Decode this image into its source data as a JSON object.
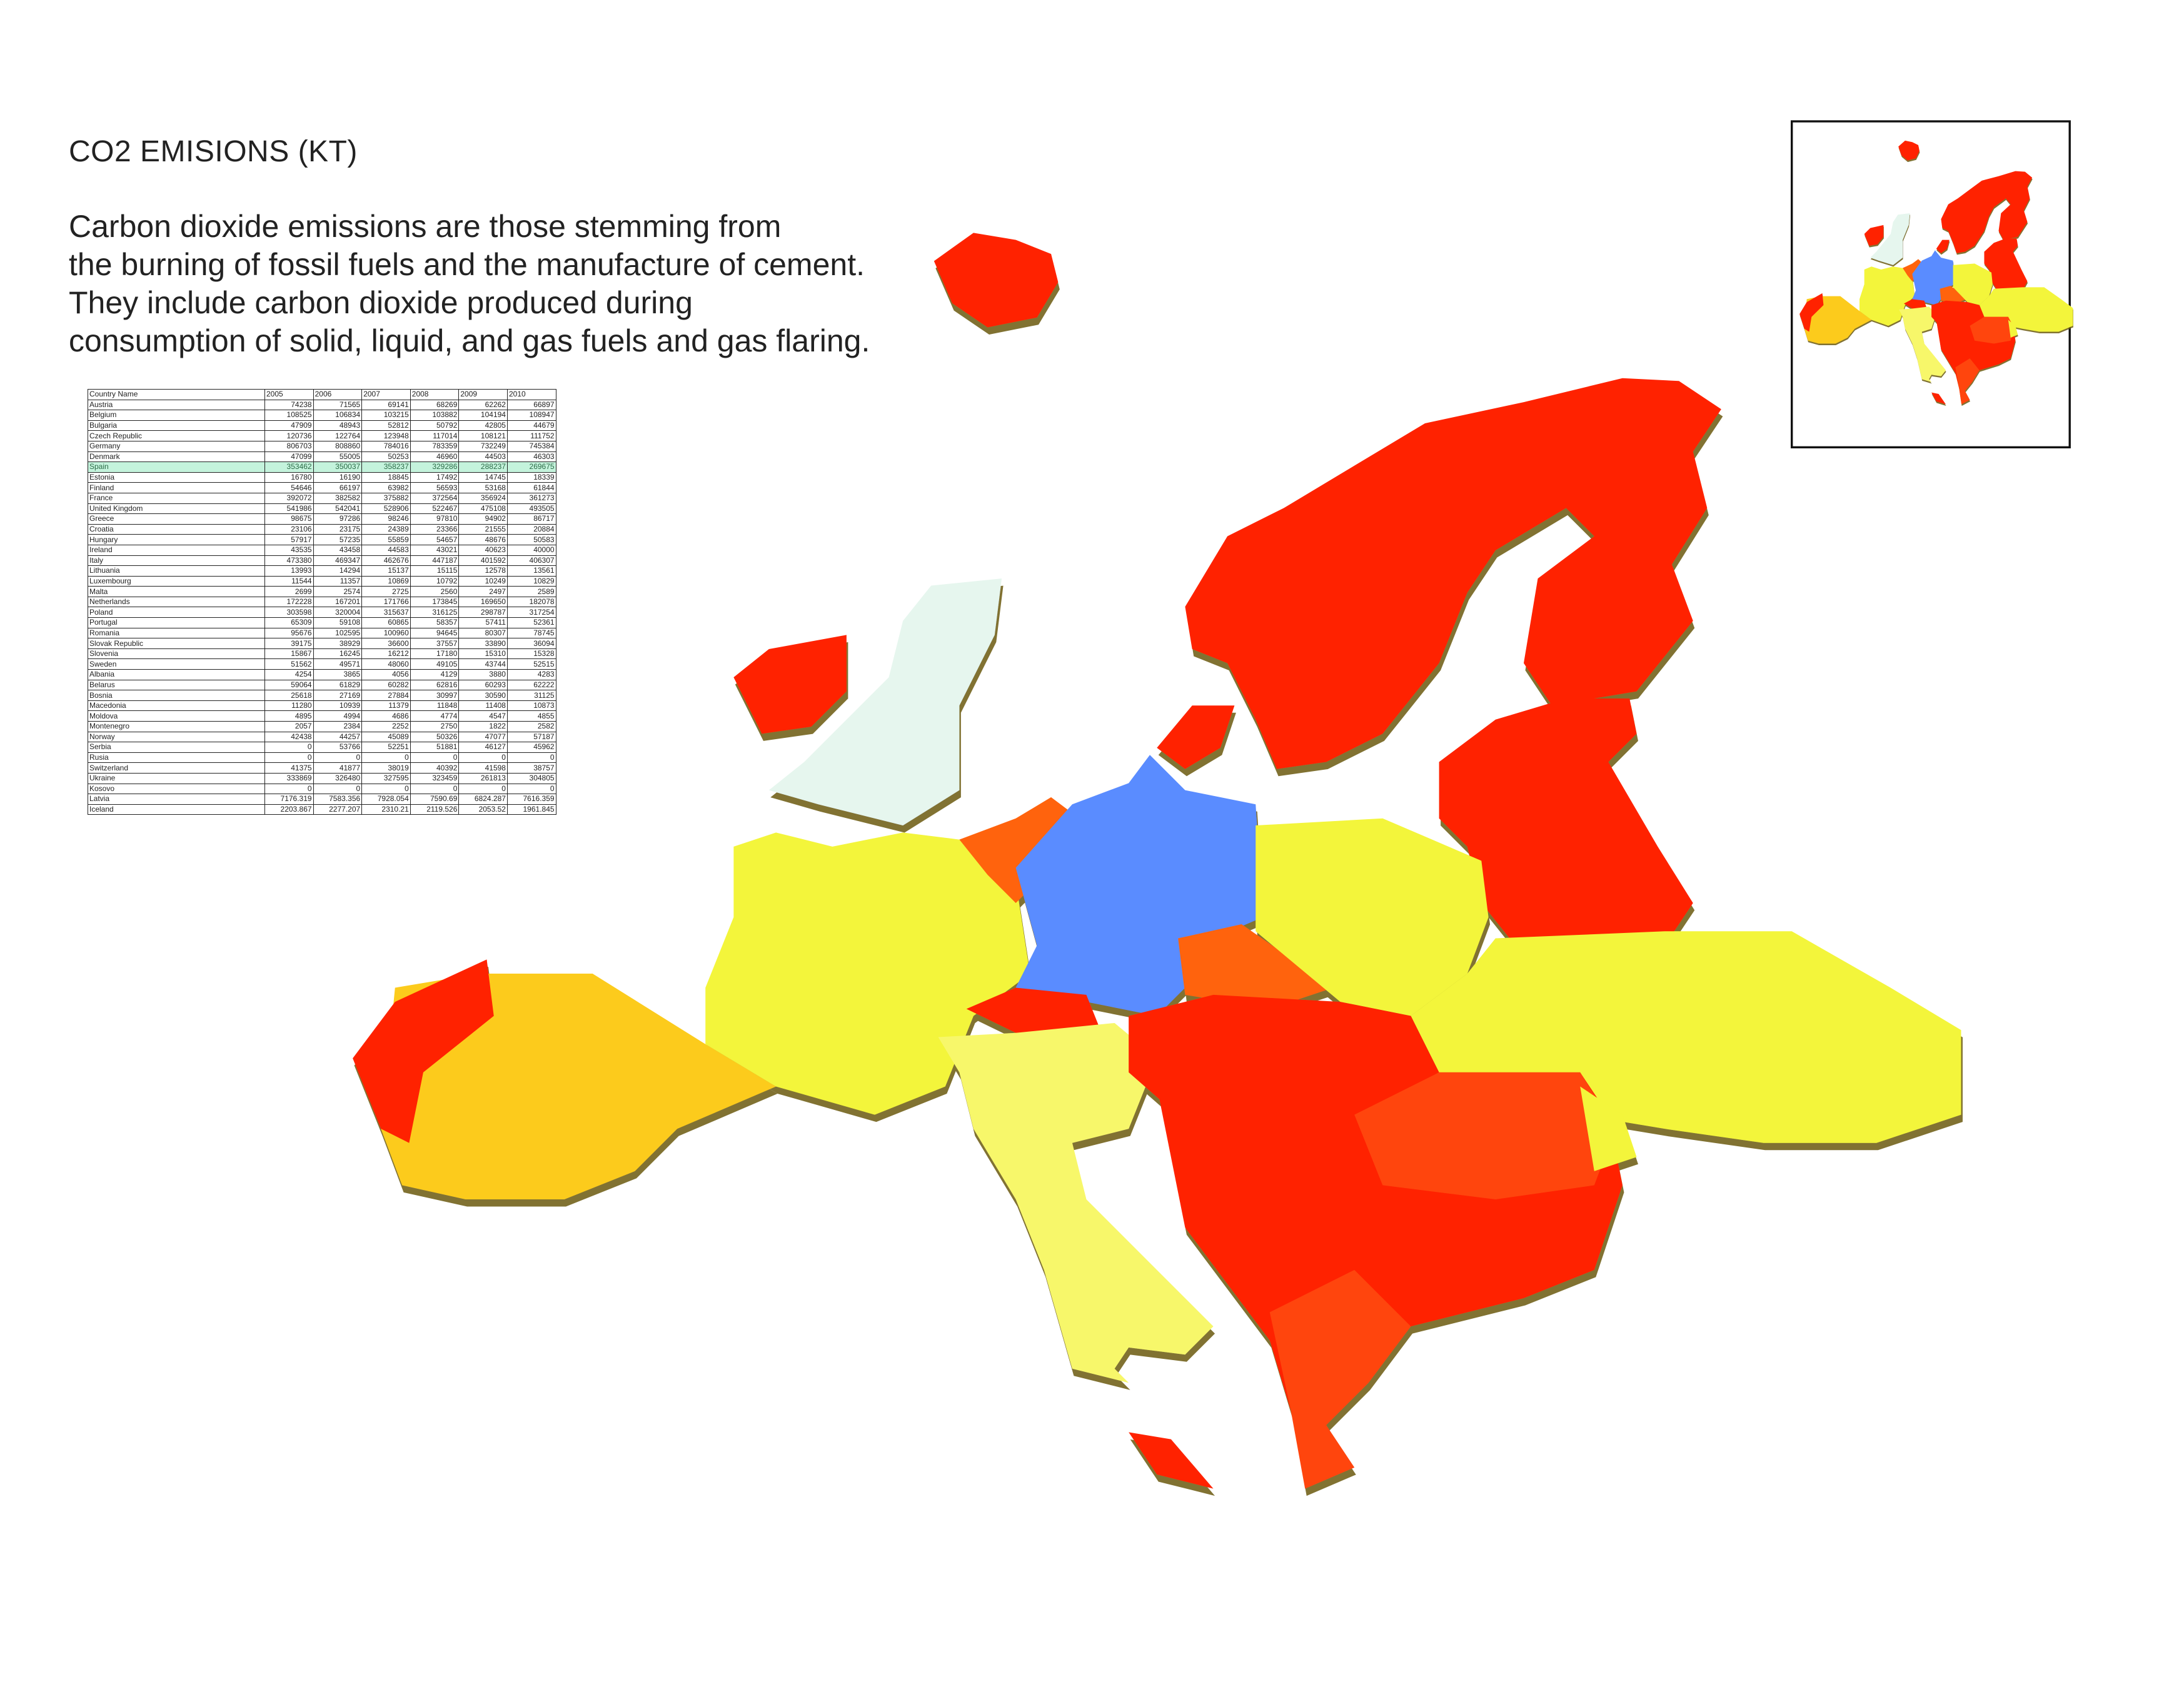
{
  "title": "CO2 EMISIONS (KT)",
  "description": [
    "Carbon dioxide emissions are those stemming from",
    "the burning of fossil fuels and the manufacture of cement.",
    "They include carbon dioxide produced during",
    "consumption of solid, liquid, and gas fuels and gas flaring."
  ],
  "table": {
    "headers": [
      "Country Name",
      "2005",
      "2006",
      "2007",
      "2008",
      "2009",
      "2010"
    ],
    "highlighted_row": "Spain",
    "rows": [
      [
        "Austria",
        "74238",
        "71565",
        "69141",
        "68269",
        "62262",
        "66897"
      ],
      [
        "Belgium",
        "108525",
        "106834",
        "103215",
        "103882",
        "104194",
        "108947"
      ],
      [
        "Bulgaria",
        "47909",
        "48943",
        "52812",
        "50792",
        "42805",
        "44679"
      ],
      [
        "Czech Republic",
        "120736",
        "122764",
        "123948",
        "117014",
        "108121",
        "111752"
      ],
      [
        "Germany",
        "806703",
        "808860",
        "784016",
        "783359",
        "732249",
        "745384"
      ],
      [
        "Denmark",
        "47099",
        "55005",
        "50253",
        "46960",
        "44503",
        "46303"
      ],
      [
        "Spain",
        "353462",
        "350037",
        "358237",
        "329286",
        "288237",
        "269675"
      ],
      [
        "Estonia",
        "16780",
        "16190",
        "18845",
        "17492",
        "14745",
        "18339"
      ],
      [
        "Finland",
        "54646",
        "66197",
        "63982",
        "56593",
        "53168",
        "61844"
      ],
      [
        "France",
        "392072",
        "382582",
        "375882",
        "372564",
        "356924",
        "361273"
      ],
      [
        "United Kingdom",
        "541986",
        "542041",
        "528906",
        "522467",
        "475108",
        "493505"
      ],
      [
        "Greece",
        "98675",
        "97286",
        "98246",
        "97810",
        "94902",
        "86717"
      ],
      [
        "Croatia",
        "23106",
        "23175",
        "24389",
        "23366",
        "21555",
        "20884"
      ],
      [
        "Hungary",
        "57917",
        "57235",
        "55859",
        "54657",
        "48676",
        "50583"
      ],
      [
        "Ireland",
        "43535",
        "43458",
        "44583",
        "43021",
        "40623",
        "40000"
      ],
      [
        "Italy",
        "473380",
        "469347",
        "462676",
        "447187",
        "401592",
        "406307"
      ],
      [
        "Lithuania",
        "13993",
        "14294",
        "15137",
        "15115",
        "12578",
        "13561"
      ],
      [
        "Luxembourg",
        "11544",
        "11357",
        "10869",
        "10792",
        "10249",
        "10829"
      ],
      [
        "Malta",
        "2699",
        "2574",
        "2725",
        "2560",
        "2497",
        "2589"
      ],
      [
        "Netherlands",
        "172228",
        "167201",
        "171766",
        "173845",
        "169650",
        "182078"
      ],
      [
        "Poland",
        "303598",
        "320004",
        "315637",
        "316125",
        "298787",
        "317254"
      ],
      [
        "Portugal",
        "65309",
        "59108",
        "60865",
        "58357",
        "57411",
        "52361"
      ],
      [
        "Romania",
        "95676",
        "102595",
        "100960",
        "94645",
        "80307",
        "78745"
      ],
      [
        "Slovak Republic",
        "39175",
        "38929",
        "36600",
        "37557",
        "33890",
        "36094"
      ],
      [
        "Slovenia",
        "15867",
        "16245",
        "16212",
        "17180",
        "15310",
        "15328"
      ],
      [
        "Sweden",
        "51562",
        "49571",
        "48060",
        "49105",
        "43744",
        "52515"
      ],
      [
        "Albania",
        "4254",
        "3865",
        "4056",
        "4129",
        "3880",
        "4283"
      ],
      [
        "Belarus",
        "59064",
        "61829",
        "60282",
        "62816",
        "60293",
        "62222"
      ],
      [
        "Bosnia",
        "25618",
        "27169",
        "27884",
        "30997",
        "30590",
        "31125"
      ],
      [
        "Macedonia",
        "11280",
        "10939",
        "11379",
        "11848",
        "11408",
        "10873"
      ],
      [
        "Moldova",
        "4895",
        "4994",
        "4686",
        "4774",
        "4547",
        "4855"
      ],
      [
        "Montenegro",
        "2057",
        "2384",
        "2252",
        "2750",
        "1822",
        "2582"
      ],
      [
        "Norway",
        "42438",
        "44257",
        "45089",
        "50326",
        "47077",
        "57187"
      ],
      [
        "Serbia",
        "0",
        "53766",
        "52251",
        "51881",
        "46127",
        "45962"
      ],
      [
        "Rusia",
        "0",
        "0",
        "0",
        "0",
        "0",
        "0"
      ],
      [
        "Switzerland",
        "41375",
        "41877",
        "38019",
        "40392",
        "41598",
        "38757"
      ],
      [
        "Ukraine",
        "333869",
        "326480",
        "327595",
        "323459",
        "261813",
        "304805"
      ],
      [
        "Kosovo",
        "0",
        "0",
        "0",
        "0",
        "0",
        "0"
      ],
      [
        "Latvia",
        "7176.319",
        "7583.356",
        "7928.054",
        "7590.69",
        "6824.287",
        "7616.359"
      ],
      [
        "Iceland",
        "2203.867",
        "2277.207",
        "2310.21",
        "2119.526",
        "2053.52",
        "1961.845"
      ]
    ]
  },
  "map": {
    "colors": {
      "germany": "#5a8cff",
      "united_kingdom": "#e6f6ee",
      "spain": "#fccb1c",
      "france_poland_ukraine": "#f3f53a",
      "italy": "#f7f76a",
      "benelux_czech": "#ff6410",
      "high_red": "#ff2400",
      "mid_red": "#ff4410"
    }
  }
}
